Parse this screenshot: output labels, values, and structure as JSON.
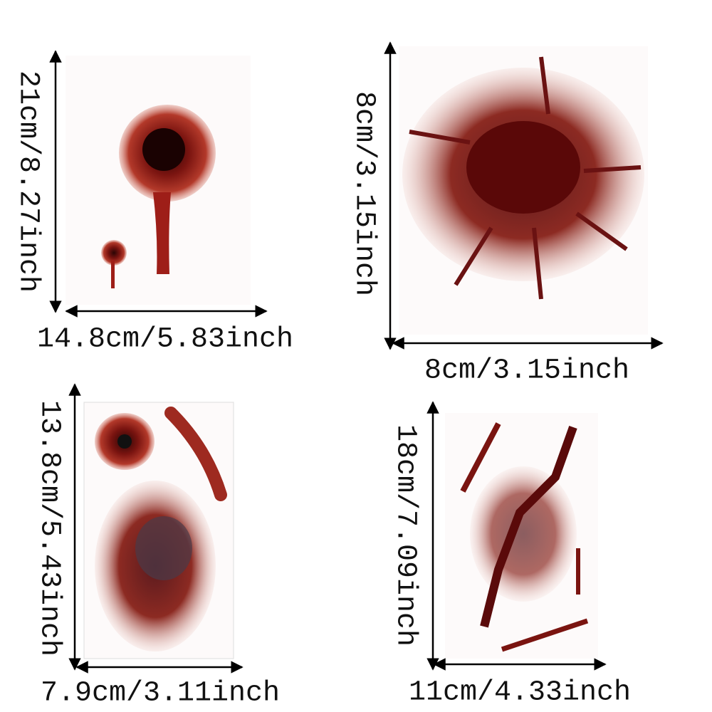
{
  "panels": [
    {
      "height": "21cm/8.27inch",
      "width": "14.8cm/5.83inch"
    },
    {
      "height": "8cm/3.15inch",
      "width": "8cm/3.15inch"
    },
    {
      "height": "13.8cm/5.43inch",
      "width": "7.9cm/3.11inch"
    },
    {
      "height": "18cm/7.09inch",
      "width": "11cm/4.33inch"
    }
  ]
}
